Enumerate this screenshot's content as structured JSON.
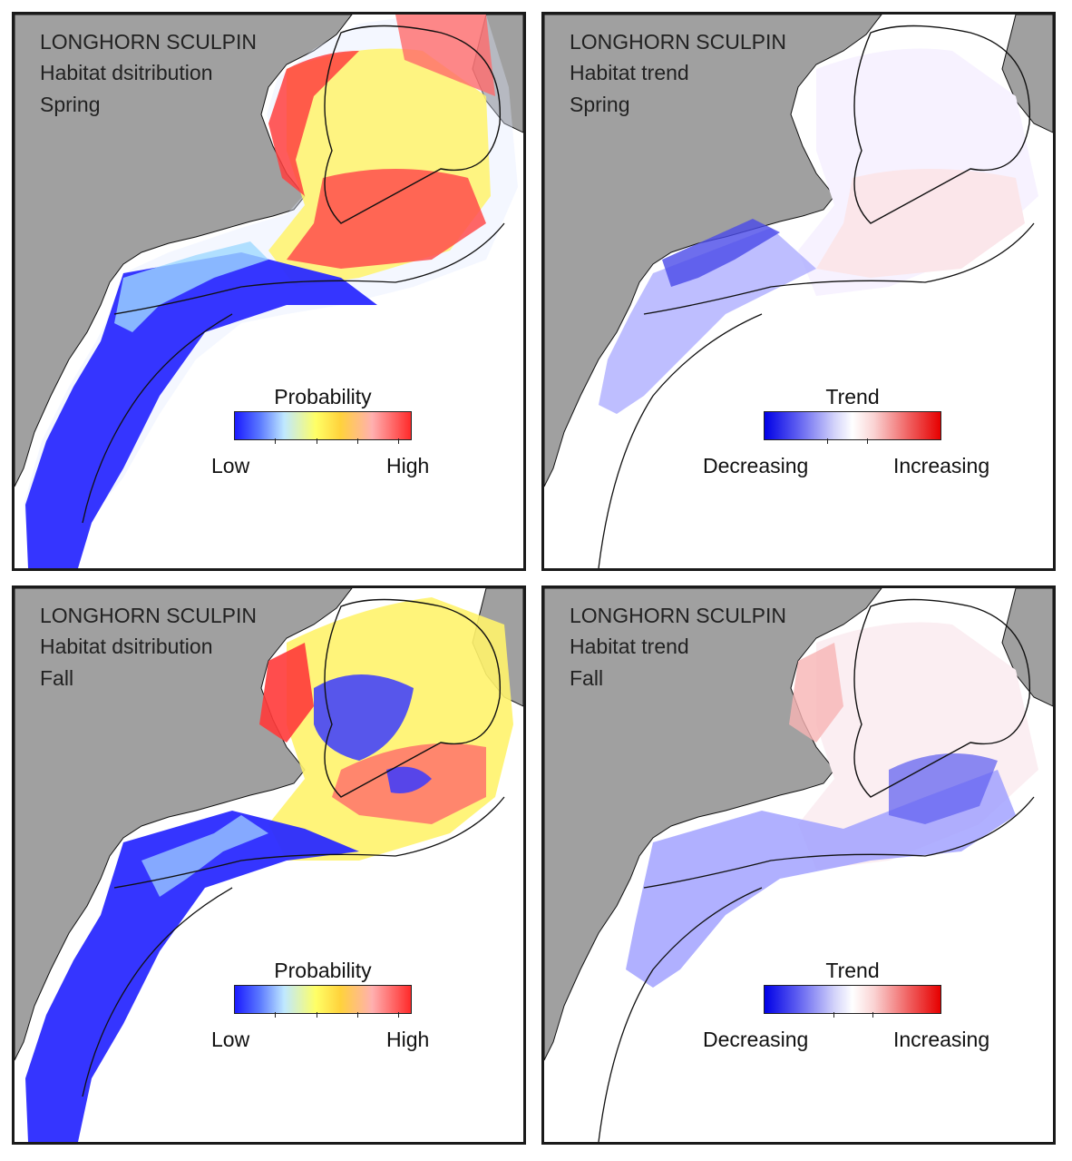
{
  "panels": [
    {
      "species": "LONGHORN SCULPIN",
      "map_type": "Habitat dsitribution",
      "season": "Spring",
      "legend": {
        "title": "Probability",
        "low": "Low",
        "high": "High"
      }
    },
    {
      "species": "LONGHORN SCULPIN",
      "map_type": "Habitat trend",
      "season": "Spring",
      "legend": {
        "title": "Trend",
        "low": "Decreasing",
        "high": "Increasing"
      }
    },
    {
      "species": "LONGHORN SCULPIN",
      "map_type": "Habitat dsitribution",
      "season": "Fall",
      "legend": {
        "title": "Probability",
        "low": "Low",
        "high": "High"
      }
    },
    {
      "species": "LONGHORN SCULPIN",
      "map_type": "Habitat trend",
      "season": "Fall",
      "legend": {
        "title": "Trend",
        "low": "Decreasing",
        "high": "Increasing"
      }
    }
  ],
  "colors": {
    "land": "#a0a0a0",
    "ocean": "#ffffff",
    "frame": "#1a1a1a",
    "prob_low": "#1a1aff",
    "prob_high": "#ff2a2a",
    "trend_dec": "#0000e6",
    "trend_inc": "#e60000"
  }
}
